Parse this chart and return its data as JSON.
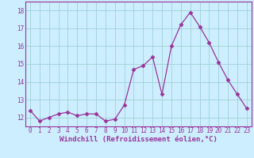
{
  "x": [
    0,
    1,
    2,
    3,
    4,
    5,
    6,
    7,
    8,
    9,
    10,
    11,
    12,
    13,
    14,
    15,
    16,
    17,
    18,
    19,
    20,
    21,
    22,
    23
  ],
  "y": [
    12.4,
    11.8,
    12.0,
    12.2,
    12.3,
    12.1,
    12.2,
    12.2,
    11.8,
    11.9,
    12.7,
    14.7,
    14.9,
    15.4,
    13.3,
    16.0,
    17.2,
    17.9,
    17.1,
    16.2,
    15.1,
    14.1,
    13.3,
    12.5
  ],
  "line_color": "#993399",
  "marker": "D",
  "markersize": 2.5,
  "linewidth": 0.9,
  "bg_color": "#cceeff",
  "grid_color": "#99cccc",
  "xlabel": "Windchill (Refroidissement éolien,°C)",
  "ylabel": "",
  "ylim": [
    11.5,
    18.5
  ],
  "yticks": [
    12,
    13,
    14,
    15,
    16,
    17,
    18
  ],
  "xticks": [
    0,
    1,
    2,
    3,
    4,
    5,
    6,
    7,
    8,
    9,
    10,
    11,
    12,
    13,
    14,
    15,
    16,
    17,
    18,
    19,
    20,
    21,
    22,
    23
  ],
  "tick_label_fontsize": 5.5,
  "xlabel_fontsize": 6.5
}
